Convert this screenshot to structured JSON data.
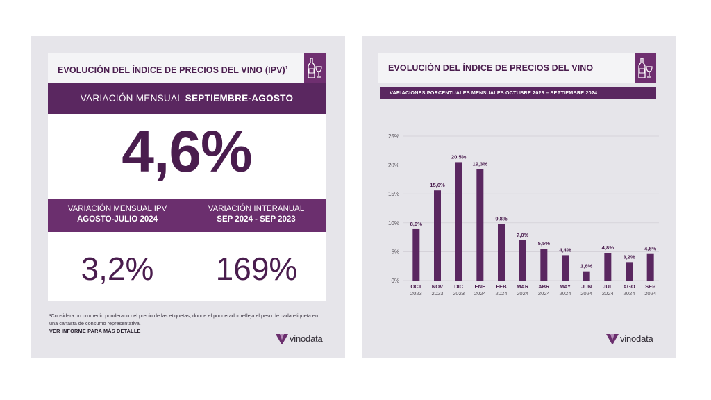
{
  "left_card": {
    "title": "EVOLUCIÓN DEL ÍNDICE DE PRECIOS DEL VINO (IPV)",
    "title_sup": "1",
    "monthly_label_light": "VARIACIÓN MENSUAL ",
    "monthly_label_bold": "SEPTIEMBRE-AGOSTO",
    "monthly_value": "4,6%",
    "sub_left_line1": "VARIACIÓN MENSUAL IPV",
    "sub_left_line2": "AGOSTO-JULIO 2024",
    "sub_left_value": "3,2%",
    "sub_right_line1": "VARIACIÓN INTERANUAL",
    "sub_right_line2": "SEP 2024 - SEP 2023",
    "sub_right_value": "169%",
    "footnote": "¹Considera un promedio ponderado del precio de las etiquetas, donde el ponderador refleja el peso de cada etiqueta en una canasta de consumo representativa.",
    "footnote_link": "VER INFORME PARA MÁS DETALLE",
    "brand": "vinodata"
  },
  "right_card": {
    "title": "EVOLUCIÓN DEL ÍNDICE DE PRECIOS DEL VINO",
    "subtitle": "VARIACIONES PORCENTUALES MENSUALES  OCTUBRE 2023 – SEPTIEMBRE 2024",
    "brand": "vinodata"
  },
  "colors": {
    "accent": "#5a2760",
    "bar": "#5a2760",
    "text_dark": "#4a1d4e",
    "card_bg": "#e6e5ea"
  },
  "icons": [
    "wine-bottle-glass-icon",
    "vinodata-logo-icon"
  ],
  "chart_data": {
    "type": "bar",
    "categories": [
      "OCT 2023",
      "NOV 2023",
      "DIC 2023",
      "ENE 2024",
      "FEB 2024",
      "MAR 2024",
      "ABR 2024",
      "MAY 2024",
      "JUN 2024",
      "JUL 2024",
      "AGO 2024",
      "SEP 2024"
    ],
    "category_lines": [
      [
        "OCT",
        "2023"
      ],
      [
        "NOV",
        "2023"
      ],
      [
        "DIC",
        "2023"
      ],
      [
        "ENE",
        "2024"
      ],
      [
        "FEB",
        "2024"
      ],
      [
        "MAR",
        "2024"
      ],
      [
        "ABR",
        "2024"
      ],
      [
        "MAY",
        "2024"
      ],
      [
        "JUN",
        "2024"
      ],
      [
        "JUL",
        "2024"
      ],
      [
        "AGO",
        "2024"
      ],
      [
        "SEP",
        "2024"
      ]
    ],
    "values": [
      8.9,
      15.6,
      20.5,
      19.3,
      9.8,
      7.0,
      5.5,
      4.4,
      1.6,
      4.8,
      3.2,
      4.6
    ],
    "value_labels": [
      "8,9%",
      "15,6%",
      "20,5%",
      "19,3%",
      "9,8%",
      "7,0%",
      "5,5%",
      "4,4%",
      "1,6%",
      "4,8%",
      "3,2%",
      "4,6%"
    ],
    "yticks": [
      "0%",
      "5%",
      "10%",
      "15%",
      "20%",
      "25%"
    ],
    "ylim": [
      0,
      25
    ],
    "grid": true,
    "legend": "none"
  }
}
